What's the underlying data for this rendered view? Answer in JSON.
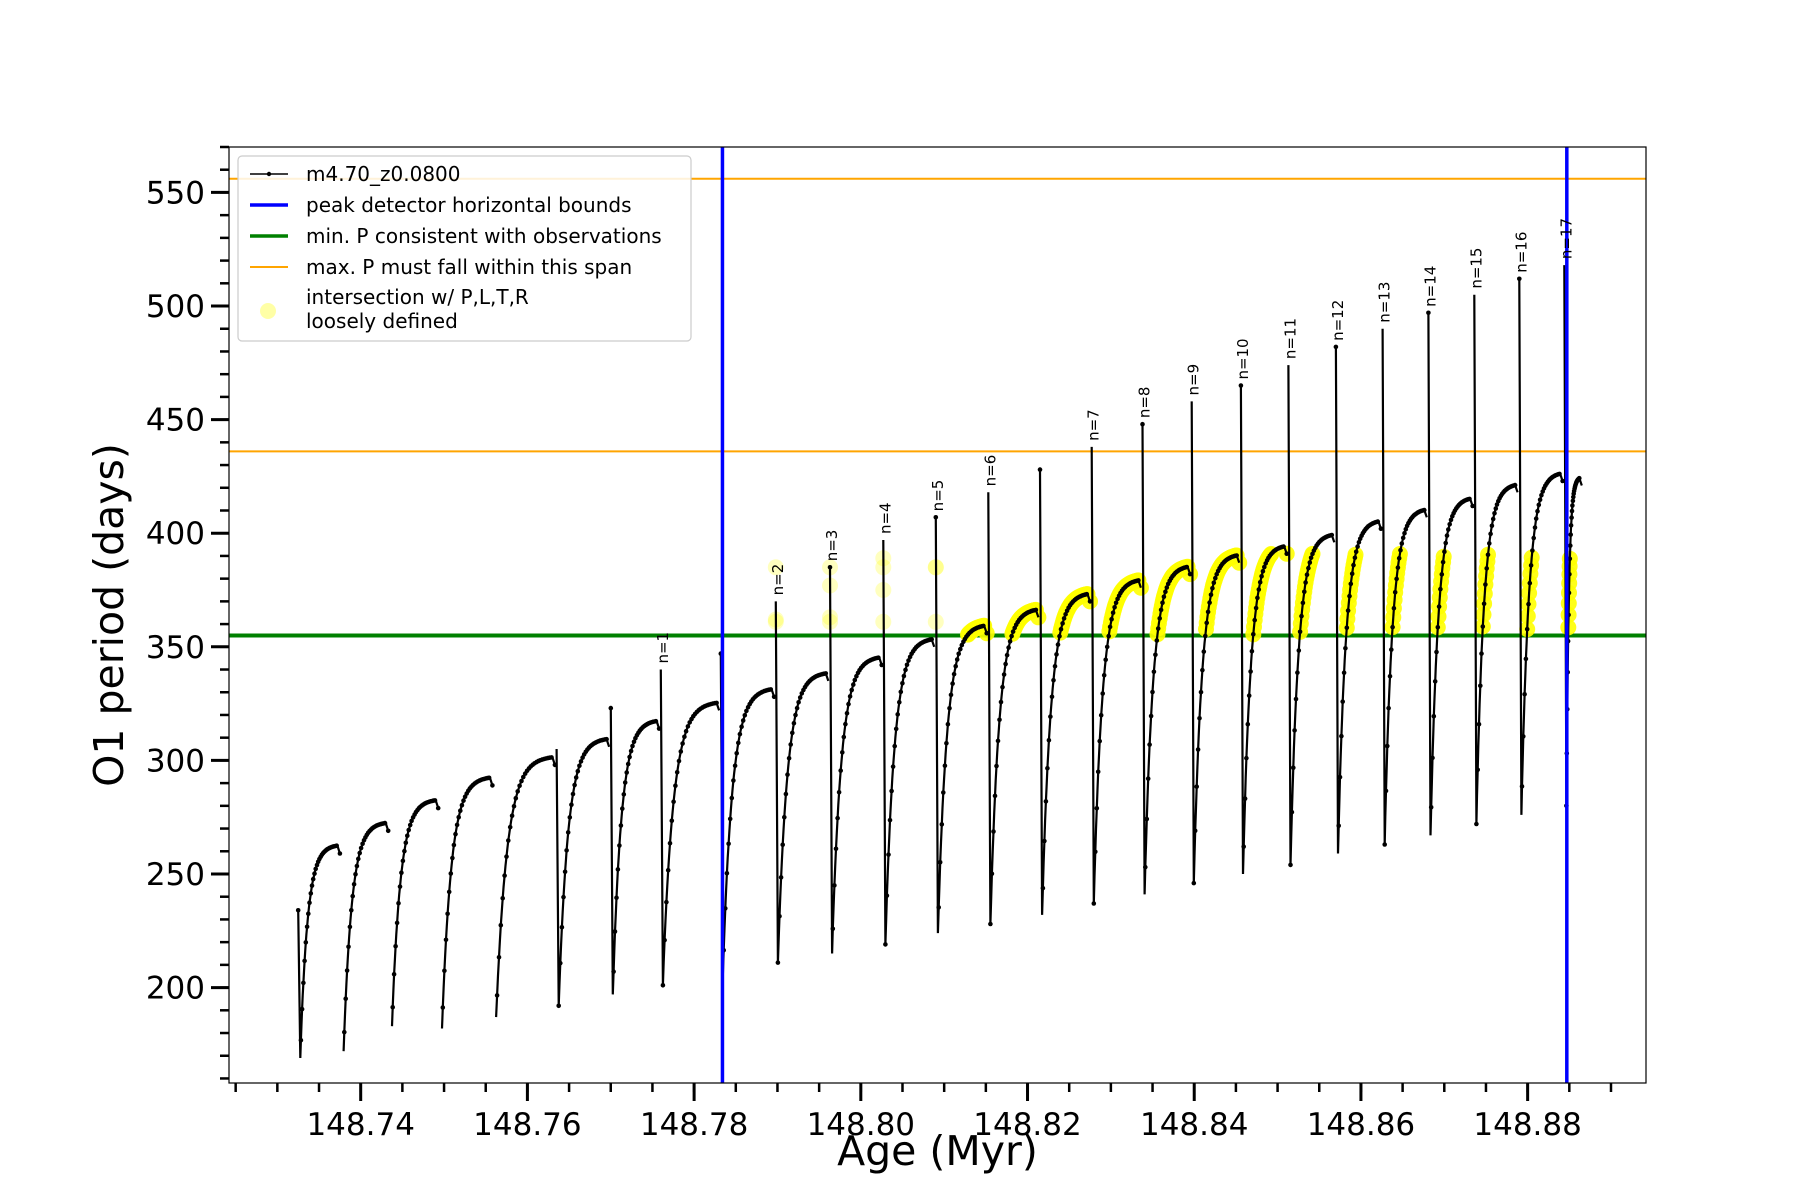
{
  "chart_data": {
    "type": "line",
    "title": "",
    "xlabel": "Age (Myr)",
    "ylabel": "O1 period (days)",
    "xlim": [
      148.7242,
      148.8942
    ],
    "ylim": [
      158,
      570
    ],
    "x_ticks": [
      148.74,
      148.76,
      148.78,
      148.8,
      148.82,
      148.84,
      148.86,
      148.88
    ],
    "x_tick_labels": [
      "148.74",
      "148.76",
      "148.78",
      "148.80",
      "148.82",
      "148.84",
      "148.86",
      "148.88"
    ],
    "y_ticks": [
      200,
      250,
      300,
      350,
      400,
      450,
      500,
      550
    ],
    "y_tick_labels": [
      "200",
      "250",
      "300",
      "350",
      "400",
      "450",
      "500",
      "550"
    ],
    "grid": false,
    "legend_position": "top-left",
    "legend": [
      {
        "label": "m4.70_z0.0800",
        "kind": "line-dots",
        "color": "#000000"
      },
      {
        "label": "peak detector horizontal bounds",
        "kind": "line",
        "color": "#0000ff"
      },
      {
        "label": "min. P consistent with observations",
        "kind": "line",
        "color": "#008000"
      },
      {
        "label": "max. P must fall within this span",
        "kind": "line",
        "color": "#ffa500"
      },
      {
        "label": [
          "intersection w/ P,L,T,R",
          "loosely defined"
        ],
        "kind": "marker",
        "color": "#ffff00"
      }
    ],
    "series": [
      {
        "name": "m4.70_z0.0800",
        "color": "#000000",
        "cycles": [
          {
            "start": 148.7325,
            "end": 148.7377,
            "rise": 234,
            "min": 169,
            "plateau": 263
          },
          {
            "start": 148.7377,
            "end": 148.7435,
            "rise": 0,
            "min": 172,
            "plateau": 273
          },
          {
            "start": 148.7435,
            "end": 148.7495,
            "rise": 0,
            "min": 183,
            "plateau": 283
          },
          {
            "start": 148.7495,
            "end": 148.756,
            "rise": 0,
            "min": 182,
            "plateau": 293
          },
          {
            "start": 148.756,
            "end": 148.7635,
            "rise": 0,
            "min": 187,
            "plateau": 302
          },
          {
            "start": 148.7635,
            "end": 148.77,
            "rise": 305,
            "min": 192,
            "plateau": 310
          },
          {
            "start": 148.77,
            "end": 148.776,
            "rise": 323,
            "min": 197,
            "plateau": 318
          },
          {
            "start": 148.776,
            "end": 148.7832,
            "rise": 340,
            "min": 201,
            "plateau": 326
          },
          {
            "start": 148.7832,
            "end": 148.7898,
            "rise": 347,
            "min": 206,
            "plateau": 332
          },
          {
            "start": 148.7898,
            "end": 148.7963,
            "rise": 370,
            "min": 211,
            "plateau": 339
          },
          {
            "start": 148.7963,
            "end": 148.8027,
            "rise": 385,
            "min": 215,
            "plateau": 346
          },
          {
            "start": 148.8027,
            "end": 148.809,
            "rise": 397,
            "min": 219,
            "plateau": 354
          },
          {
            "start": 148.809,
            "end": 148.8153,
            "rise": 407,
            "min": 224,
            "plateau": 360
          },
          {
            "start": 148.8153,
            "end": 148.8215,
            "rise": 418,
            "min": 228,
            "plateau": 367
          },
          {
            "start": 148.8215,
            "end": 148.8277,
            "rise": 428,
            "min": 232,
            "plateau": 374
          },
          {
            "start": 148.8277,
            "end": 148.8338,
            "rise": 438,
            "min": 237,
            "plateau": 380
          },
          {
            "start": 148.8338,
            "end": 148.8397,
            "rise": 448,
            "min": 241,
            "plateau": 386
          },
          {
            "start": 148.8397,
            "end": 148.8456,
            "rise": 458,
            "min": 246,
            "plateau": 391
          },
          {
            "start": 148.8456,
            "end": 148.8513,
            "rise": 465,
            "min": 250,
            "plateau": 395
          },
          {
            "start": 148.8513,
            "end": 148.857,
            "rise": 474,
            "min": 254,
            "plateau": 400
          },
          {
            "start": 148.857,
            "end": 148.8626,
            "rise": 482,
            "min": 259,
            "plateau": 406
          },
          {
            "start": 148.8626,
            "end": 148.8681,
            "rise": 490,
            "min": 263,
            "plateau": 411
          },
          {
            "start": 148.8681,
            "end": 148.8736,
            "rise": 497,
            "min": 267,
            "plateau": 416
          },
          {
            "start": 148.8736,
            "end": 148.879,
            "rise": 505,
            "min": 272,
            "plateau": 422
          },
          {
            "start": 148.879,
            "end": 148.8844,
            "rise": 512,
            "min": 276,
            "plateau": 427
          },
          {
            "start": 148.8844,
            "end": 148.8867,
            "rise": 518,
            "min": 280,
            "plateau": 425
          }
        ]
      }
    ],
    "vlines": [
      {
        "label": "peak detector horizontal bounds",
        "x": 148.7834,
        "color": "#0000ff"
      },
      {
        "label": "peak detector horizontal bounds",
        "x": 148.8847,
        "color": "#0000ff"
      }
    ],
    "hlines": [
      {
        "label": "min. P consistent with observations",
        "y": 355,
        "color": "#008000"
      },
      {
        "label": "max. P must fall within this span",
        "y": 436,
        "color": "#ffa500"
      },
      {
        "label": "max. P must fall within this span",
        "y": 556,
        "color": "#ffa500"
      }
    ],
    "intersection_band": {
      "label": "intersection w/ P,L,T,R loosely defined",
      "ymin": 355,
      "ymax": 391,
      "color": "#ffff00"
    },
    "peak_annotations": [
      {
        "text": "n=1",
        "x": 148.776,
        "y": 340
      },
      {
        "text": "n=2",
        "x": 148.7898,
        "y": 370
      },
      {
        "text": "n=3",
        "x": 148.7963,
        "y": 385
      },
      {
        "text": "n=4",
        "x": 148.8027,
        "y": 397
      },
      {
        "text": "n=5",
        "x": 148.809,
        "y": 407
      },
      {
        "text": "n=6",
        "x": 148.8153,
        "y": 418
      },
      {
        "text": "n=7",
        "x": 148.8277,
        "y": 438
      },
      {
        "text": "n=8",
        "x": 148.8338,
        "y": 448
      },
      {
        "text": "n=9",
        "x": 148.8397,
        "y": 458
      },
      {
        "text": "n=10",
        "x": 148.8456,
        "y": 465
      },
      {
        "text": "n=11",
        "x": 148.8513,
        "y": 474
      },
      {
        "text": "n=12",
        "x": 148.857,
        "y": 482
      },
      {
        "text": "n=13",
        "x": 148.8626,
        "y": 490
      },
      {
        "text": "n=14",
        "x": 148.8681,
        "y": 497
      },
      {
        "text": "n=15",
        "x": 148.8736,
        "y": 505
      },
      {
        "text": "n=16",
        "x": 148.879,
        "y": 512
      },
      {
        "text": "n=17",
        "x": 148.8844,
        "y": 518
      }
    ]
  }
}
